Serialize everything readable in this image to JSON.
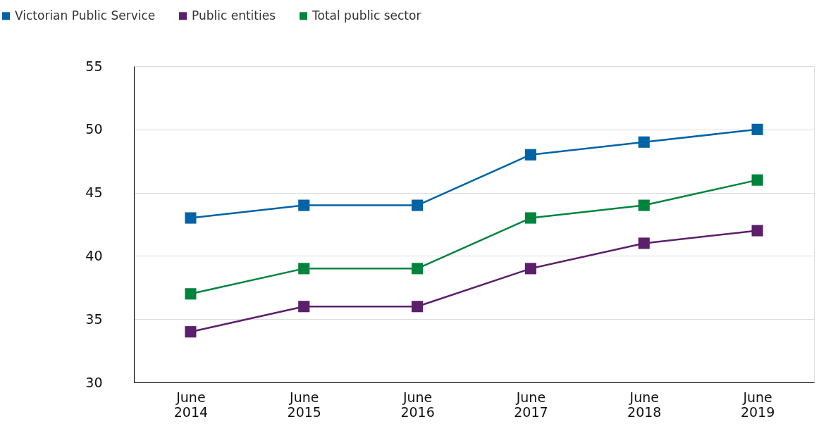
{
  "chart_data": {
    "type": "line",
    "categories": [
      "June 2014",
      "June 2015",
      "June 2016",
      "June 2017",
      "June 2018",
      "June 2019"
    ],
    "series": [
      {
        "name": "Victorian Public Service",
        "color": "#0063a6",
        "values": [
          43,
          44,
          44,
          48,
          49,
          50
        ]
      },
      {
        "name": "Public entities",
        "color": "#5c1f6b",
        "values": [
          34,
          36,
          36,
          39,
          41,
          42
        ]
      },
      {
        "name": "Total public sector",
        "color": "#00843d",
        "values": [
          37,
          39,
          39,
          43,
          44,
          46
        ]
      }
    ],
    "ylim": [
      30,
      55
    ],
    "yticks": [
      30,
      35,
      40,
      45,
      50,
      55
    ],
    "grid": "y",
    "legend": "top left",
    "marker": "square",
    "line_style": "solid"
  }
}
